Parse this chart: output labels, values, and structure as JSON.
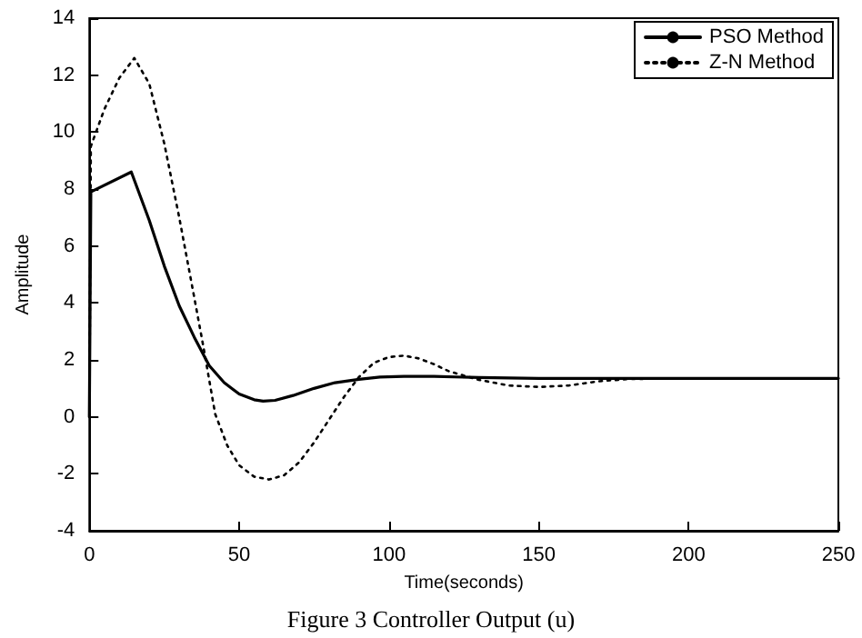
{
  "chart_data": {
    "type": "line",
    "xlabel": "Time(seconds)",
    "ylabel": "Amplitude",
    "annotations": [
      "Figure 3 Controller Output (u)"
    ],
    "xlim": [
      0,
      250
    ],
    "xticks": [
      0,
      50,
      100,
      150,
      200,
      250
    ],
    "ylim": [
      -4,
      14
    ],
    "yticks": [
      -4,
      -2,
      0,
      2,
      4,
      6,
      8,
      10,
      12,
      14
    ],
    "grid": false,
    "legend": "top right",
    "marker": "none",
    "series": [
      {
        "name": "PSO Method",
        "color": "#000000",
        "line_style": "solid",
        "x": [
          0,
          0.5,
          14,
          20,
          25,
          30,
          35,
          40,
          45,
          50,
          55,
          58,
          62,
          68,
          75,
          82,
          90,
          97,
          105,
          115,
          130,
          150,
          200,
          250
        ],
        "values": [
          0,
          7.9,
          8.6,
          6.9,
          5.3,
          3.9,
          2.8,
          1.8,
          1.2,
          0.8,
          0.6,
          0.55,
          0.58,
          0.75,
          1.0,
          1.2,
          1.32,
          1.4,
          1.42,
          1.42,
          1.38,
          1.35,
          1.35,
          1.35
        ]
      },
      {
        "name": "Z-N Method",
        "color": "#000000",
        "line_style": "dotted",
        "x": [
          0,
          0.5,
          5,
          10,
          15,
          20,
          25,
          30,
          35,
          38,
          42,
          46,
          50,
          55,
          60,
          65,
          70,
          75,
          80,
          85,
          90,
          95,
          100,
          105,
          110,
          115,
          120,
          130,
          140,
          150,
          160,
          170,
          180,
          200,
          250
        ],
        "values": [
          0,
          9.5,
          10.8,
          11.9,
          12.6,
          11.7,
          9.6,
          7.0,
          4.2,
          2.5,
          0.1,
          -1.0,
          -1.7,
          -2.1,
          -2.2,
          -2.05,
          -1.6,
          -0.9,
          -0.1,
          0.7,
          1.4,
          1.9,
          2.1,
          2.15,
          2.05,
          1.85,
          1.6,
          1.3,
          1.1,
          1.05,
          1.1,
          1.25,
          1.33,
          1.35,
          1.35
        ]
      }
    ]
  }
}
